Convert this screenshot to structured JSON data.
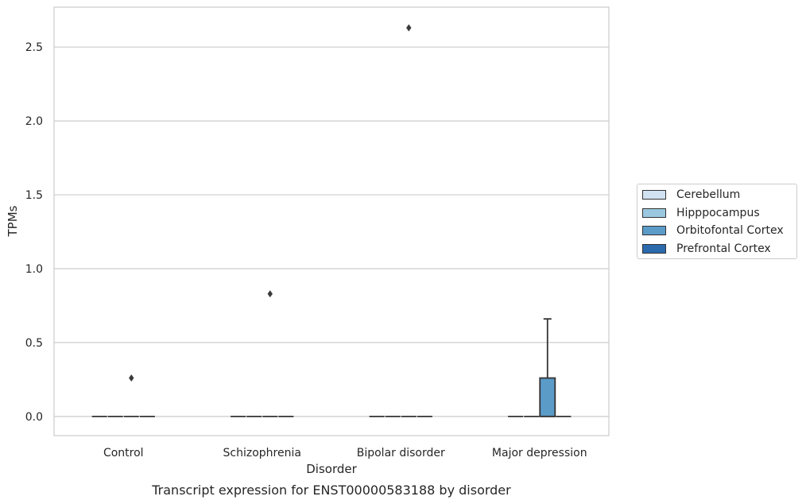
{
  "chart_data": {
    "type": "box",
    "title": "",
    "caption": "Transcript expression for ENST00000583188 by disorder",
    "xlabel": "Disorder",
    "ylabel": "TPMs",
    "ylim": [
      -0.13,
      2.77
    ],
    "yticks": [
      0.0,
      0.5,
      1.0,
      1.5,
      2.0,
      2.5
    ],
    "ytick_labels": [
      "0.0",
      "0.5",
      "1.0",
      "1.5",
      "2.0",
      "2.5"
    ],
    "categories": [
      "Control",
      "Schizophrenia",
      "Bipolar disorder",
      "Major depression"
    ],
    "grid": "horizontal",
    "legend_position": "outside-right",
    "series": [
      {
        "name": "Cerebellum",
        "color": "#d1e2f2",
        "boxes": [
          {
            "q1": 0,
            "median": 0,
            "q3": 0,
            "whisker_low": 0,
            "whisker_high": 0,
            "outliers": []
          },
          {
            "q1": 0,
            "median": 0,
            "q3": 0,
            "whisker_low": 0,
            "whisker_high": 0,
            "outliers": []
          },
          {
            "q1": 0,
            "median": 0,
            "q3": 0,
            "whisker_low": 0,
            "whisker_high": 0,
            "outliers": []
          },
          {
            "q1": 0,
            "median": 0,
            "q3": 0,
            "whisker_low": 0,
            "whisker_high": 0,
            "outliers": []
          }
        ]
      },
      {
        "name": "Hipppocampus",
        "color": "#9ac8e0",
        "boxes": [
          {
            "q1": 0,
            "median": 0,
            "q3": 0,
            "whisker_low": 0,
            "whisker_high": 0,
            "outliers": []
          },
          {
            "q1": 0,
            "median": 0,
            "q3": 0,
            "whisker_low": 0,
            "whisker_high": 0,
            "outliers": []
          },
          {
            "q1": 0,
            "median": 0,
            "q3": 0,
            "whisker_low": 0,
            "whisker_high": 0,
            "outliers": []
          },
          {
            "q1": 0,
            "median": 0,
            "q3": 0,
            "whisker_low": 0,
            "whisker_high": 0,
            "outliers": []
          }
        ]
      },
      {
        "name": "Orbitofontal Cortex",
        "color": "#5a9bc8",
        "boxes": [
          {
            "q1": 0,
            "median": 0,
            "q3": 0,
            "whisker_low": 0,
            "whisker_high": 0,
            "outliers": [
              0.26
            ]
          },
          {
            "q1": 0,
            "median": 0,
            "q3": 0,
            "whisker_low": 0,
            "whisker_high": 0,
            "outliers": [
              0.83
            ]
          },
          {
            "q1": 0,
            "median": 0,
            "q3": 0,
            "whisker_low": 0,
            "whisker_high": 0,
            "outliers": [
              2.63
            ]
          },
          {
            "q1": 0,
            "median": 0,
            "q3": 0.26,
            "whisker_low": 0,
            "whisker_high": 0.66,
            "outliers": []
          }
        ]
      },
      {
        "name": "Prefrontal Cortex",
        "color": "#2a6aad",
        "boxes": [
          {
            "q1": 0,
            "median": 0,
            "q3": 0,
            "whisker_low": 0,
            "whisker_high": 0,
            "outliers": []
          },
          {
            "q1": 0,
            "median": 0,
            "q3": 0,
            "whisker_low": 0,
            "whisker_high": 0,
            "outliers": []
          },
          {
            "q1": 0,
            "median": 0,
            "q3": 0,
            "whisker_low": 0,
            "whisker_high": 0,
            "outliers": []
          },
          {
            "q1": 0,
            "median": 0,
            "q3": 0,
            "whisker_low": 0,
            "whisker_high": 0,
            "outliers": []
          }
        ]
      }
    ]
  }
}
